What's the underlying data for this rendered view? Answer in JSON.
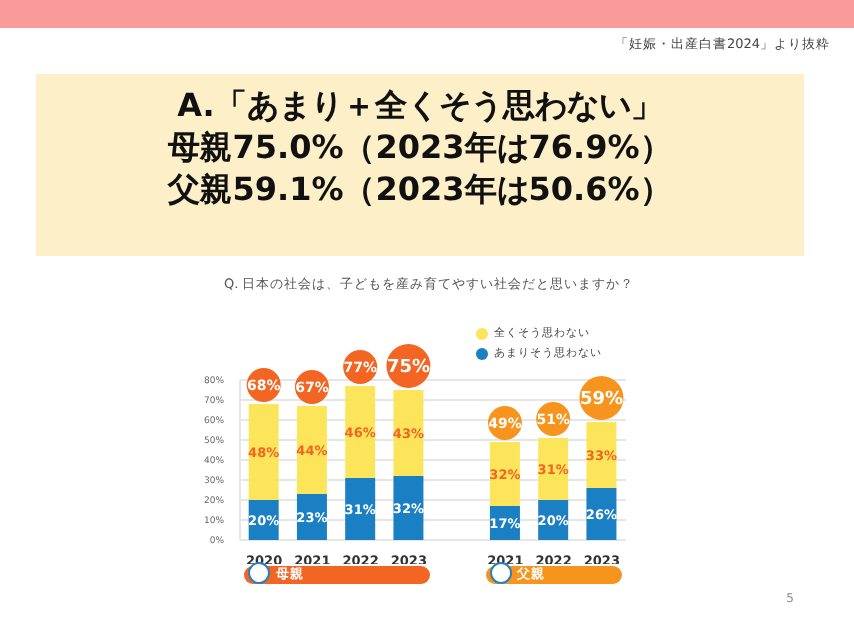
{
  "chart_data": {
    "type": "bar",
    "title": "A.「あまり＋全くそう思わない」",
    "subtitle": "母親75.0%（2023年は76.9%）",
    "categories": [
      "2020",
      "2021",
      "2022",
      "2023",
      null,
      "2021",
      "2022",
      "2023"
    ],
    "series": [
      {
        "name": "あまりそう思わない",
        "color": "#1b7fc4",
        "values": [
          20,
          23,
          31,
          32,
          null,
          17,
          20,
          26
        ],
        "value_labels": [
          "20%",
          "23%",
          "31%",
          "32%",
          null,
          "17%",
          "20%",
          "26%"
        ]
      },
      {
        "name": "全くそう思わない",
        "color": "#fce55a",
        "values": [
          48,
          44,
          46,
          43,
          null,
          32,
          31,
          33
        ],
        "value_labels": [
          "48%",
          "44%",
          "46%",
          "43%",
          null,
          "32%",
          "31%",
          "33%"
        ]
      }
    ],
    "stacked": true,
    "totals": [
      "68%",
      "67%",
      "77%",
      "75%",
      null,
      "49%",
      "51%",
      "59%"
    ],
    "ylim": [
      0,
      80
    ],
    "yticks": [
      {
        "value": 0,
        "label": "0%"
      },
      {
        "value": 10,
        "label": "10%"
      },
      {
        "value": 20,
        "label": "20%"
      },
      {
        "value": 30,
        "label": "30%"
      },
      {
        "value": 40,
        "label": "40%"
      },
      {
        "value": 50,
        "label": "50%"
      },
      {
        "value": 60,
        "label": "60%"
      },
      {
        "value": 70,
        "label": "70%"
      },
      {
        "value": 80,
        "label": "80%"
      }
    ],
    "grid": "y",
    "legend": "top right",
    "annotations": [
      "父親59.1%（2023年は50.6%）",
      "Q. 日本の社会は、子どもを産み育てやすい社会だと思いますか？",
      "母親",
      "父親",
      "「妊娠・出産白書2024」より抜粋",
      "5"
    ]
  }
}
